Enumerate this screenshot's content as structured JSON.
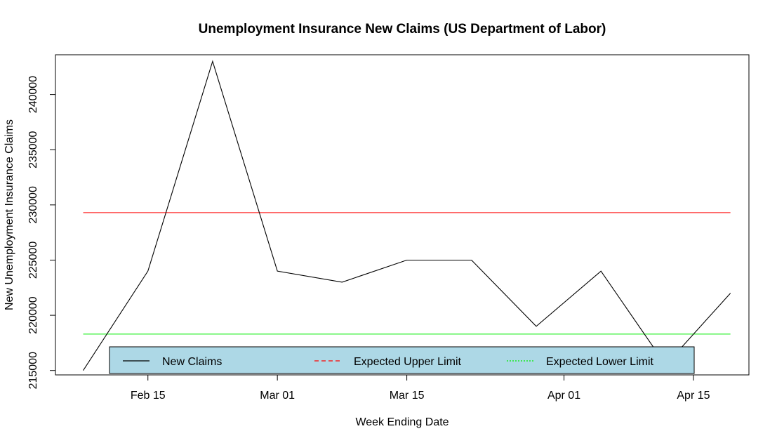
{
  "chart_data": {
    "type": "line",
    "title": "Unemployment Insurance New Claims (US Department of Labor)",
    "xlabel": "Week Ending Date",
    "ylabel": "New Unemployment Insurance Claims",
    "x_ticks": [
      {
        "date": "2014-02-15",
        "label": "Feb 15"
      },
      {
        "date": "2014-03-01",
        "label": "Mar 01"
      },
      {
        "date": "2014-03-15",
        "label": "Mar 15"
      },
      {
        "date": "2014-04-01",
        "label": "Apr 01"
      },
      {
        "date": "2014-04-15",
        "label": "Apr 15"
      }
    ],
    "y_ticks": [
      215000,
      220000,
      225000,
      230000,
      235000,
      240000
    ],
    "xlim": [
      "2014-02-05",
      "2014-04-21"
    ],
    "ylim": [
      214600,
      243600
    ],
    "series": [
      {
        "name": "New Claims",
        "color": "#000000",
        "style": "solid",
        "x": [
          "2014-02-08",
          "2014-02-15",
          "2014-02-22",
          "2014-03-01",
          "2014-03-08",
          "2014-03-15",
          "2014-03-22",
          "2014-03-29",
          "2014-04-05",
          "2014-04-12",
          "2014-04-19"
        ],
        "y": [
          215000,
          224000,
          243000,
          224000,
          223000,
          225000,
          225000,
          219000,
          224000,
          215500,
          222000
        ]
      }
    ],
    "reference_lines": [
      {
        "name": "Expected Upper Limit",
        "color": "#ff0000",
        "style": "dashed",
        "y": 229300
      },
      {
        "name": "Expected Lower Limit",
        "color": "#00ee00",
        "style": "dotted",
        "y": 218300
      }
    ],
    "legend": {
      "placement": "bottom-center",
      "background": "#add8e6",
      "entries": [
        "New Claims",
        "Expected Upper Limit",
        "Expected Lower Limit"
      ]
    },
    "grid": false
  }
}
